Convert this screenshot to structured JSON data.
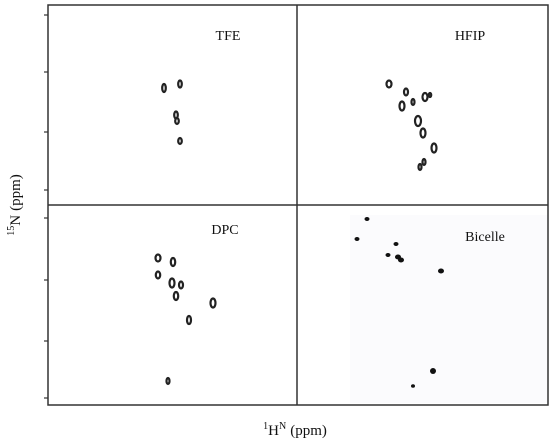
{
  "panels": [
    {
      "label": "TFE"
    },
    {
      "label": "HFIP"
    },
    {
      "label": "DPC"
    },
    {
      "label": "Bicelle"
    }
  ],
  "x_label": {
    "isotope": "1",
    "nucleus": "H",
    "superscript": "N",
    "unit": "(ppm)"
  },
  "y_label": {
    "isotope": "15",
    "nucleus": "N",
    "unit": "(ppm)"
  }
}
